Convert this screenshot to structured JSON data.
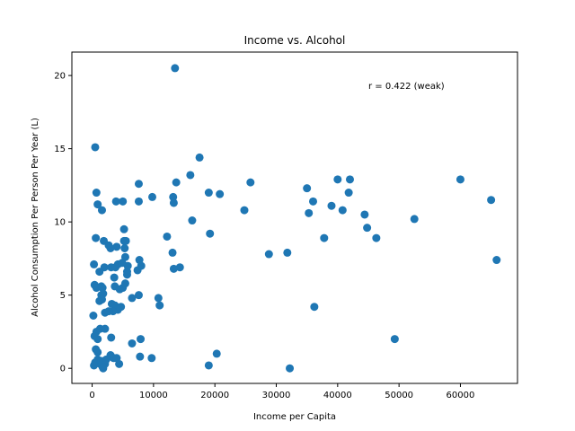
{
  "chart_data": {
    "type": "scatter",
    "title": "Income vs. Alcohol",
    "xlabel": "Income per Capita",
    "ylabel": "Alcohol Consumption Per Person Per Year (L)",
    "xlim": [
      -3300,
      69300
    ],
    "ylim": [
      -1.03,
      21.6
    ],
    "xticks": [
      0,
      10000,
      20000,
      30000,
      40000,
      50000,
      60000
    ],
    "yticks": [
      0,
      5,
      10,
      15,
      20
    ],
    "grid": false,
    "legend": "none",
    "color": "#1f77b4",
    "annotation": "r = 0.422 (weak)",
    "points": [
      [
        13500,
        20.5
      ],
      [
        500,
        15.1
      ],
      [
        17500,
        14.4
      ],
      [
        16000,
        13.2
      ],
      [
        60000,
        12.9
      ],
      [
        40000,
        12.9
      ],
      [
        42000,
        12.9
      ],
      [
        25800,
        12.7
      ],
      [
        7600,
        12.6
      ],
      [
        13700,
        12.7
      ],
      [
        35000,
        12.3
      ],
      [
        700,
        12.0
      ],
      [
        19000,
        12.0
      ],
      [
        20800,
        11.9
      ],
      [
        41800,
        12.0
      ],
      [
        65000,
        11.5
      ],
      [
        9800,
        11.7
      ],
      [
        13200,
        11.7
      ],
      [
        3900,
        11.4
      ],
      [
        5000,
        11.4
      ],
      [
        7600,
        11.4
      ],
      [
        13300,
        11.3
      ],
      [
        36000,
        11.4
      ],
      [
        900,
        11.2
      ],
      [
        1600,
        10.8
      ],
      [
        24800,
        10.8
      ],
      [
        39000,
        11.1
      ],
      [
        40800,
        10.8
      ],
      [
        35300,
        10.6
      ],
      [
        44400,
        10.5
      ],
      [
        52500,
        10.2
      ],
      [
        16300,
        10.1
      ],
      [
        5200,
        9.5
      ],
      [
        44800,
        9.6
      ],
      [
        19200,
        9.2
      ],
      [
        12200,
        9.0
      ],
      [
        37800,
        8.9
      ],
      [
        46300,
        8.9
      ],
      [
        600,
        8.9
      ],
      [
        5200,
        8.7
      ],
      [
        1900,
        8.7
      ],
      [
        5500,
        8.7
      ],
      [
        4000,
        8.3
      ],
      [
        2700,
        8.4
      ],
      [
        3000,
        8.2
      ],
      [
        5300,
        8.2
      ],
      [
        13100,
        7.9
      ],
      [
        28800,
        7.8
      ],
      [
        31800,
        7.9
      ],
      [
        65900,
        7.4
      ],
      [
        5400,
        7.6
      ],
      [
        7700,
        7.4
      ],
      [
        8000,
        7.0
      ],
      [
        4200,
        7.1
      ],
      [
        4900,
        7.2
      ],
      [
        5800,
        7.0
      ],
      [
        300,
        7.1
      ],
      [
        2000,
        6.9
      ],
      [
        3100,
        6.9
      ],
      [
        3800,
        6.9
      ],
      [
        14300,
        6.9
      ],
      [
        13300,
        6.8
      ],
      [
        1200,
        6.6
      ],
      [
        5700,
        6.6
      ],
      [
        5700,
        6.4
      ],
      [
        3600,
        6.2
      ],
      [
        7400,
        6.7
      ],
      [
        400,
        5.7
      ],
      [
        700,
        5.5
      ],
      [
        1500,
        5.6
      ],
      [
        1700,
        5.5
      ],
      [
        3700,
        5.6
      ],
      [
        4500,
        5.4
      ],
      [
        5000,
        5.5
      ],
      [
        5400,
        5.8
      ],
      [
        1800,
        5.1
      ],
      [
        1500,
        5.0
      ],
      [
        7600,
        5.0
      ],
      [
        6500,
        4.8
      ],
      [
        10800,
        4.8
      ],
      [
        1200,
        4.6
      ],
      [
        1600,
        4.7
      ],
      [
        3200,
        4.4
      ],
      [
        3700,
        4.3
      ],
      [
        4700,
        4.2
      ],
      [
        11000,
        4.3
      ],
      [
        36200,
        4.2
      ],
      [
        4200,
        4.0
      ],
      [
        3400,
        3.9
      ],
      [
        2100,
        3.8
      ],
      [
        2700,
        3.9
      ],
      [
        200,
        3.6
      ],
      [
        700,
        2.5
      ],
      [
        400,
        2.2
      ],
      [
        1300,
        2.7
      ],
      [
        2100,
        2.7
      ],
      [
        900,
        2.0
      ],
      [
        3100,
        2.1
      ],
      [
        7900,
        2.0
      ],
      [
        6500,
        1.7
      ],
      [
        49300,
        2.0
      ],
      [
        600,
        1.3
      ],
      [
        900,
        1.1
      ],
      [
        3000,
        0.9
      ],
      [
        3100,
        0.8
      ],
      [
        3500,
        0.7
      ],
      [
        4000,
        0.7
      ],
      [
        7800,
        0.8
      ],
      [
        9700,
        0.7
      ],
      [
        20300,
        1.0
      ],
      [
        500,
        0.4
      ],
      [
        900,
        0.6
      ],
      [
        1300,
        0.3
      ],
      [
        1500,
        0.5
      ],
      [
        2100,
        0.3
      ],
      [
        2300,
        0.6
      ],
      [
        300,
        0.2
      ],
      [
        1700,
        0.1
      ],
      [
        1800,
        0.0
      ],
      [
        4400,
        0.3
      ],
      [
        19000,
        0.2
      ],
      [
        32200,
        0.0
      ]
    ]
  }
}
